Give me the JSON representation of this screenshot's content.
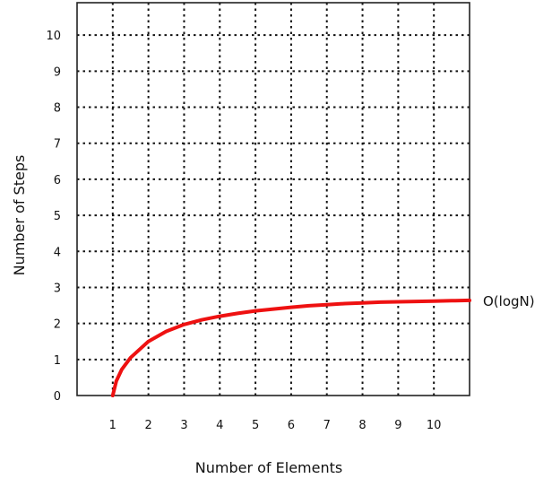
{
  "chart_data": {
    "type": "line",
    "title": "",
    "xlabel": "Number of Elements",
    "ylabel": "Number of Steps",
    "xlim": [
      0,
      11
    ],
    "ylim": [
      0,
      10.9
    ],
    "x_ticks": [
      1,
      2,
      3,
      4,
      5,
      6,
      7,
      8,
      9,
      10
    ],
    "y_ticks": [
      0,
      1,
      2,
      3,
      4,
      5,
      6,
      7,
      8,
      9,
      10
    ],
    "grid": true,
    "grid_style": "dotted",
    "frame_color": "#222222",
    "grid_color": "#111111",
    "series": [
      {
        "name": "O(logN)",
        "color": "#ee1111",
        "x": [
          1,
          1.1,
          1.25,
          1.5,
          2,
          2.5,
          3,
          3.5,
          4,
          4.5,
          5,
          5.5,
          6,
          6.5,
          7,
          7.5,
          8,
          8.5,
          9,
          9.5,
          10,
          10.5,
          11
        ],
        "y": [
          0,
          0.4,
          0.72,
          1.05,
          1.5,
          1.78,
          1.97,
          2.1,
          2.2,
          2.28,
          2.35,
          2.4,
          2.45,
          2.49,
          2.52,
          2.55,
          2.57,
          2.59,
          2.6,
          2.61,
          2.62,
          2.63,
          2.64
        ]
      }
    ]
  }
}
